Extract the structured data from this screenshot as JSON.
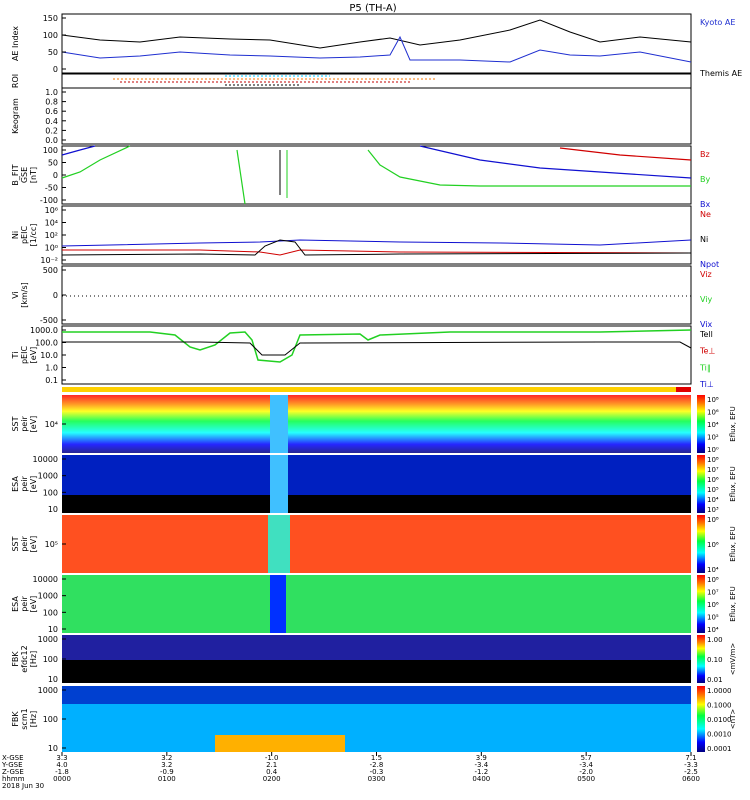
{
  "title": "P5 (TH-A)",
  "colors": {
    "kyoto": "#000000",
    "themis": "#1f2fd0",
    "red": "#d00000",
    "green": "#22d022",
    "blue": "#1010d0",
    "black": "#000000"
  },
  "x_axis": {
    "hhmm": [
      "0000",
      "0100",
      "0200",
      "0300",
      "0400",
      "0500",
      "0600"
    ],
    "date": "2018 Jun 30",
    "row_labels": [
      "X-GSE",
      "Y-GSE",
      "Z-GSE",
      "hhmm"
    ],
    "x_gse": [
      "3.3",
      "3.2",
      "-1.0",
      "1.5",
      "3.9",
      "5.7",
      "7.1"
    ],
    "y_gse": [
      "4.0",
      "3.2",
      "2.1",
      "-2.8",
      "-3.4",
      "-3.4",
      "-3.3"
    ],
    "z_gse": [
      "-1.8",
      "-0.9",
      "0.4",
      "-0.3",
      "-1.2",
      "-2.0",
      "-2.5"
    ]
  },
  "panels": [
    {
      "id": "ae",
      "label": "AE Index",
      "yticks": [
        "150",
        "100",
        "50",
        "0"
      ],
      "legend": [
        {
          "text": "Kyoto AE",
          "color": "#1f2fd0"
        },
        {
          "text": "Themis AE",
          "color": "#000000"
        }
      ]
    },
    {
      "id": "roi",
      "label": "ROI",
      "yticks": []
    },
    {
      "id": "keogram",
      "label": "Keogram",
      "yticks": [
        "1.0",
        "0.8",
        "0.6",
        "0.4",
        "0.2",
        "0.0"
      ]
    },
    {
      "id": "bfit",
      "label": "B_FIT\nGSE\n[nT]",
      "yticks": [
        "100",
        "50",
        "0",
        "-50",
        "-100"
      ],
      "legend": [
        {
          "text": "Bz",
          "color": "#d00000"
        },
        {
          "text": "By",
          "color": "#22d022"
        },
        {
          "text": "Bx",
          "color": "#1010d0"
        }
      ]
    },
    {
      "id": "ni",
      "label": "Ni\npEIC\n[1/cc]",
      "yticks": [
        "10⁶",
        "10⁴",
        "10²",
        "10⁰",
        "10⁻²"
      ],
      "legend": [
        {
          "text": "Ne",
          "color": "#d00000"
        },
        {
          "text": "Ni",
          "color": "#000000"
        },
        {
          "text": "Npot",
          "color": "#1010d0"
        }
      ]
    },
    {
      "id": "vi",
      "label": "Vi\n[km/s]",
      "yticks": [
        "500",
        "0",
        "-500"
      ],
      "legend": [
        {
          "text": "Viz",
          "color": "#d00000"
        },
        {
          "text": "Viy",
          "color": "#22d022"
        },
        {
          "text": "Vix",
          "color": "#1010d0"
        }
      ]
    },
    {
      "id": "ti",
      "label": "Ti\npEIC\n[eV]",
      "yticks": [
        "1000.0",
        "100.0",
        "10.0",
        "1.0",
        "0.1"
      ],
      "legend": [
        {
          "text": "Tell",
          "color": "#000000"
        },
        {
          "text": "Te⊥",
          "color": "#d00000"
        },
        {
          "text": "Ti∥",
          "color": "#22d022"
        },
        {
          "text": "Ti⊥",
          "color": "#1010d0"
        }
      ]
    },
    {
      "id": "sst_e",
      "label": "SST\npeir\n[eV]",
      "yticks": [
        "10⁴"
      ],
      "cblabel": "Eflux, EFU",
      "cbticks": [
        "10⁸",
        "10⁶",
        "10⁴",
        "10²",
        "10⁰"
      ]
    },
    {
      "id": "esa_e",
      "label": "ESA\npeir\n[eV]",
      "yticks": [
        "10000",
        "1000",
        "100",
        "10"
      ],
      "cblabel": "Eflux, EFU",
      "cbticks": [
        "10⁸",
        "10⁷",
        "10⁶",
        "10⁵",
        "10⁴",
        "10³"
      ]
    },
    {
      "id": "sst_i",
      "label": "SST\npeir\n[eV]",
      "yticks": [
        "10⁵"
      ],
      "cblabel": "Eflux, EFU",
      "cbticks": [
        "10⁸",
        "10⁶",
        "10⁴"
      ]
    },
    {
      "id": "esa_i",
      "label": "ESA\npeir\n[eV]",
      "yticks": [
        "10000",
        "1000",
        "100",
        "10"
      ],
      "cblabel": "Eflux, EFU",
      "cbticks": [
        "10⁸",
        "10⁷",
        "10⁶",
        "10⁵",
        "10⁴"
      ]
    },
    {
      "id": "fbk_e",
      "label": "FBK\nefdc12\n[Hz]",
      "yticks": [
        "1000",
        "100",
        "10"
      ],
      "cblabel": "<mV/m>",
      "cbticks": [
        "1.00",
        "0.10",
        "0.01"
      ]
    },
    {
      "id": "fbk_b",
      "label": "FBK\nscm1\n[Hz]",
      "yticks": [
        "1000",
        "100",
        "10"
      ],
      "cblabel": "<nT>",
      "cbticks": [
        "1.0000",
        "0.1000",
        "0.0100",
        "0.0010",
        "0.0001"
      ]
    }
  ],
  "chart_data": [
    {
      "type": "line",
      "title": "P5 (TH-A)",
      "ylabel": "AE Index",
      "ylim": [
        0,
        150
      ],
      "x_hours": [
        0,
        0.5,
        1,
        1.5,
        2,
        2.5,
        3,
        3.5,
        4,
        4.5,
        5,
        5.5,
        6
      ],
      "series": [
        {
          "name": "Kyoto AE",
          "values": [
            90,
            78,
            85,
            92,
            95,
            70,
            85,
            80,
            88,
            135,
            98,
            105,
            108
          ]
        },
        {
          "name": "Themis AE",
          "values": [
            40,
            32,
            35,
            42,
            25,
            22,
            35,
            15,
            28,
            52,
            30,
            28,
            22
          ]
        }
      ]
    },
    {
      "type": "line",
      "ylabel": "B_FIT GSE [nT]",
      "ylim": [
        -100,
        100
      ],
      "series": [
        {
          "name": "Bz",
          "x_hours": [
            5.0,
            6.0
          ],
          "values": [
            85,
            45
          ]
        },
        {
          "name": "By",
          "x_hours": [
            0,
            0.7,
            3.0,
            4.0,
            6.0
          ],
          "values": [
            100,
            100,
            60,
            -25,
            -25
          ]
        },
        {
          "name": "Bx",
          "x_hours": [
            0,
            0.3,
            3.3,
            4.5,
            6.0
          ],
          "values": [
            85,
            100,
            100,
            40,
            20
          ]
        }
      ]
    },
    {
      "type": "line",
      "ylabel": "Ti pEIC [eV]",
      "ylim": [
        0.1,
        1000
      ],
      "series": [
        {
          "name": "Ti∥",
          "x_hours": [
            0,
            1.4,
            1.8,
            2.0,
            2.3,
            3.0,
            6.0
          ],
          "values": [
            900,
            150,
            700,
            50,
            800,
            300,
            900
          ]
        },
        {
          "name": "Tell",
          "x_hours": [
            0,
            1.8,
            2.2,
            2.4,
            6.0
          ],
          "values": [
            150,
            140,
            60,
            130,
            160
          ]
        }
      ]
    }
  ]
}
